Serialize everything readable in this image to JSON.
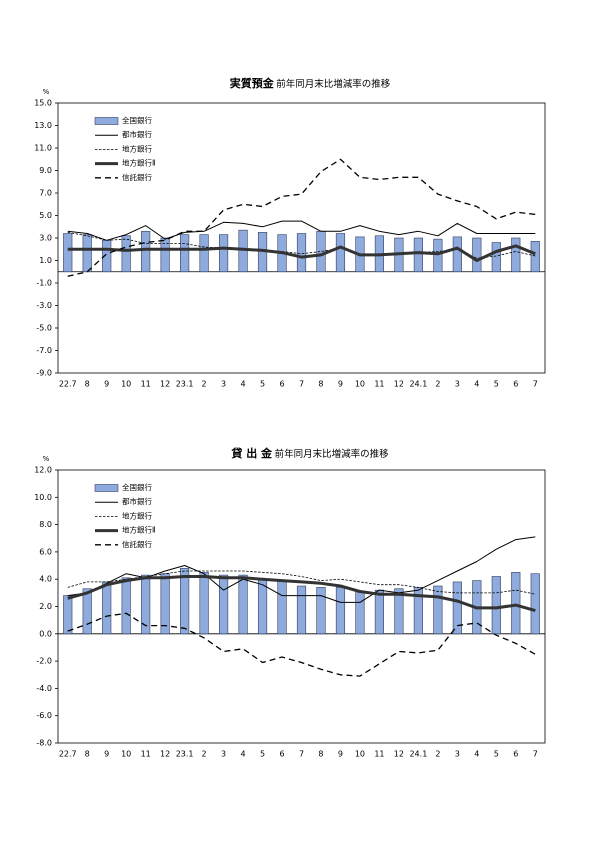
{
  "chart_data": [
    {
      "type": "bar_line",
      "title": "実質預金",
      "subtitle": "前年同月末比増減率の推移",
      "unit": "%",
      "categories": [
        "22.7",
        "8",
        "9",
        "10",
        "11",
        "12",
        "23.1",
        "2",
        "3",
        "4",
        "5",
        "6",
        "7",
        "8",
        "9",
        "10",
        "11",
        "12",
        "24.1",
        "2",
        "3",
        "4",
        "5",
        "6",
        "7"
      ],
      "ylim": [
        -9,
        15
      ],
      "yticks": [
        {
          "value": 15,
          "label": "15.0"
        },
        {
          "value": 13,
          "label": "13.0"
        },
        {
          "value": 11,
          "label": "11.0"
        },
        {
          "value": 9,
          "label": "9.0"
        },
        {
          "value": 7,
          "label": "7.0"
        },
        {
          "value": 5,
          "label": "5.0"
        },
        {
          "value": 3,
          "label": "3.0"
        },
        {
          "value": 1,
          "label": "1.0"
        },
        {
          "value": -1,
          "label": "-1.0"
        },
        {
          "value": -3,
          "label": "-3.0"
        },
        {
          "value": -5,
          "label": "-5.0"
        },
        {
          "value": -7,
          "label": "-7.0"
        },
        {
          "value": -9,
          "label": "-9.0"
        }
      ],
      "grid": false,
      "series": [
        {
          "name": "全国銀行",
          "kind": "bar",
          "color": "#8faadc",
          "values": [
            3.4,
            3.3,
            2.8,
            3.2,
            3.6,
            3.0,
            3.3,
            3.3,
            3.3,
            3.7,
            3.5,
            3.3,
            3.4,
            3.6,
            3.4,
            3.1,
            3.2,
            3.0,
            3.0,
            2.9,
            3.1,
            3.0,
            2.6,
            3.0,
            2.7
          ]
        },
        {
          "name": "都市銀行",
          "kind": "line",
          "color": "#000000",
          "line_style": "solid",
          "values": [
            3.6,
            3.4,
            2.8,
            3.3,
            4.1,
            2.9,
            3.5,
            3.6,
            4.4,
            4.3,
            4.0,
            4.5,
            4.5,
            3.6,
            3.6,
            4.1,
            3.6,
            3.3,
            3.6,
            3.2,
            4.3,
            3.4,
            3.4,
            3.4,
            3.4
          ]
        },
        {
          "name": "地方銀行",
          "kind": "line",
          "color": "#000000",
          "line_style": "dotted",
          "values": [
            3.5,
            3.2,
            2.8,
            2.9,
            2.5,
            2.5,
            2.5,
            2.2,
            2.1,
            2.0,
            1.9,
            1.8,
            1.6,
            1.8,
            2.1,
            1.5,
            1.6,
            1.6,
            1.7,
            1.8,
            2.0,
            1.2,
            1.4,
            1.8,
            1.4
          ]
        },
        {
          "name": "地方銀行Ⅱ",
          "kind": "line",
          "color": "#333333",
          "line_style": "thick",
          "values": [
            2.0,
            2.0,
            2.0,
            1.9,
            2.0,
            2.0,
            2.0,
            2.0,
            2.1,
            2.0,
            1.9,
            1.7,
            1.3,
            1.5,
            2.2,
            1.5,
            1.5,
            1.6,
            1.7,
            1.6,
            2.1,
            1.0,
            1.8,
            2.3,
            1.6
          ]
        },
        {
          "name": "信託銀行",
          "kind": "line",
          "color": "#000000",
          "line_style": "dashed",
          "values": [
            -0.4,
            0.0,
            1.6,
            2.2,
            2.6,
            2.8,
            3.6,
            3.6,
            5.5,
            6.0,
            5.8,
            6.7,
            6.9,
            8.9,
            10.0,
            8.4,
            8.2,
            8.4,
            8.4,
            6.9,
            6.3,
            5.8,
            4.7,
            5.3,
            5.1
          ]
        }
      ]
    },
    {
      "type": "bar_line",
      "title": "貸 出 金",
      "subtitle": "前年同月末比増減率の推移",
      "unit": "%",
      "categories": [
        "22.7",
        "8",
        "9",
        "10",
        "11",
        "12",
        "23.1",
        "2",
        "3",
        "4",
        "5",
        "6",
        "7",
        "8",
        "9",
        "10",
        "11",
        "12",
        "24.1",
        "2",
        "3",
        "4",
        "5",
        "6",
        "7"
      ],
      "ylim": [
        -8,
        12
      ],
      "yticks": [
        {
          "value": 12,
          "label": "12.0"
        },
        {
          "value": 10,
          "label": "10.0"
        },
        {
          "value": 8,
          "label": "8.0"
        },
        {
          "value": 6,
          "label": "6.0"
        },
        {
          "value": 4,
          "label": "4.0"
        },
        {
          "value": 2,
          "label": "2.0"
        },
        {
          "value": 0,
          "label": "0.0"
        },
        {
          "value": -2,
          "label": "-2.0"
        },
        {
          "value": -4,
          "label": "-4.0"
        },
        {
          "value": -6,
          "label": "-6.0"
        },
        {
          "value": -8,
          "label": "-8.0"
        }
      ],
      "grid": false,
      "series": [
        {
          "name": "全国銀行",
          "kind": "bar",
          "color": "#8faadc",
          "values": [
            2.8,
            3.3,
            3.8,
            4.1,
            4.3,
            4.4,
            4.8,
            4.5,
            4.3,
            4.3,
            4.0,
            3.9,
            3.5,
            3.4,
            3.4,
            3.1,
            3.2,
            3.3,
            3.4,
            3.5,
            3.8,
            3.9,
            4.2,
            4.5,
            4.4
          ]
        },
        {
          "name": "都市銀行",
          "kind": "line",
          "color": "#000000",
          "line_style": "solid",
          "values": [
            2.8,
            3.0,
            3.7,
            4.4,
            4.1,
            4.6,
            5.0,
            4.4,
            3.2,
            4.0,
            3.6,
            2.8,
            2.8,
            2.8,
            2.3,
            2.3,
            3.2,
            3.0,
            3.2,
            3.9,
            4.6,
            5.3,
            6.2,
            6.9,
            7.1
          ]
        },
        {
          "name": "地方銀行",
          "kind": "line",
          "color": "#000000",
          "line_style": "dotted",
          "values": [
            3.4,
            3.8,
            3.8,
            4.0,
            4.2,
            4.4,
            4.6,
            4.6,
            4.6,
            4.6,
            4.5,
            4.4,
            4.2,
            3.9,
            4.0,
            3.8,
            3.6,
            3.6,
            3.4,
            3.1,
            3.0,
            3.0,
            3.0,
            3.2,
            2.9
          ]
        },
        {
          "name": "地方銀行Ⅱ",
          "kind": "line",
          "color": "#333333",
          "line_style": "thick",
          "values": [
            2.6,
            3.0,
            3.6,
            3.9,
            4.1,
            4.1,
            4.2,
            4.2,
            4.1,
            4.1,
            4.0,
            3.9,
            3.8,
            3.7,
            3.5,
            3.1,
            2.9,
            2.9,
            2.8,
            2.7,
            2.4,
            1.9,
            1.9,
            2.1,
            1.7
          ]
        },
        {
          "name": "信託銀行",
          "kind": "line",
          "color": "#000000",
          "line_style": "dashed",
          "values": [
            0.2,
            0.7,
            1.3,
            1.5,
            0.6,
            0.6,
            0.4,
            -0.3,
            -1.3,
            -1.1,
            -2.1,
            -1.7,
            -2.1,
            -2.6,
            -3.0,
            -3.1,
            -2.2,
            -1.3,
            -1.4,
            -1.2,
            0.6,
            0.8,
            -0.1,
            -0.7,
            -1.5
          ]
        }
      ]
    }
  ]
}
